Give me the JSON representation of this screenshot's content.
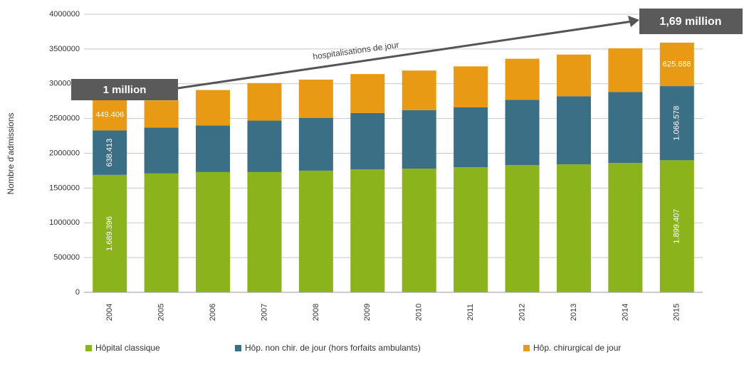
{
  "chart_data": {
    "type": "stacked_bar",
    "y_axis_label": "Nombre d'admissions",
    "categories": [
      "2004",
      "2005",
      "2006",
      "2007",
      "2008",
      "2009",
      "2010",
      "2011",
      "2012",
      "2013",
      "2014",
      "2015"
    ],
    "series": [
      {
        "name": "Hôpital classique",
        "color": "#8ab31c",
        "values": [
          1689396,
          1710000,
          1730000,
          1730000,
          1750000,
          1770000,
          1780000,
          1800000,
          1830000,
          1840000,
          1860000,
          1899407
        ],
        "value_labels": [
          "1.689.396",
          null,
          null,
          null,
          null,
          null,
          null,
          null,
          null,
          null,
          null,
          "1.899.407"
        ]
      },
      {
        "name": "Hôp. non chir. de jour (hors forfaits ambulants)",
        "color": "#3a6f86",
        "values": [
          638413,
          660000,
          670000,
          740000,
          760000,
          810000,
          840000,
          860000,
          940000,
          980000,
          1020000,
          1066578
        ],
        "value_labels": [
          "638.413",
          null,
          null,
          null,
          null,
          null,
          null,
          null,
          null,
          null,
          null,
          "1.066.578"
        ]
      },
      {
        "name": "Hôp. chirurgical de jour",
        "color": "#e99a14",
        "values": [
          449406,
          390000,
          510000,
          540000,
          550000,
          560000,
          570000,
          590000,
          590000,
          600000,
          630000,
          625688
        ],
        "value_labels": [
          "449.406",
          null,
          null,
          null,
          null,
          null,
          null,
          null,
          null,
          null,
          null,
          "625.688"
        ]
      }
    ],
    "ylim": [
      0,
      4000000
    ],
    "yticks": [
      0,
      500000,
      1000000,
      1500000,
      2000000,
      2500000,
      3000000,
      3500000,
      4000000
    ],
    "grid": true,
    "annotations": [
      "1 million",
      "1,69 million",
      "hospitalisations de jour"
    ]
  }
}
